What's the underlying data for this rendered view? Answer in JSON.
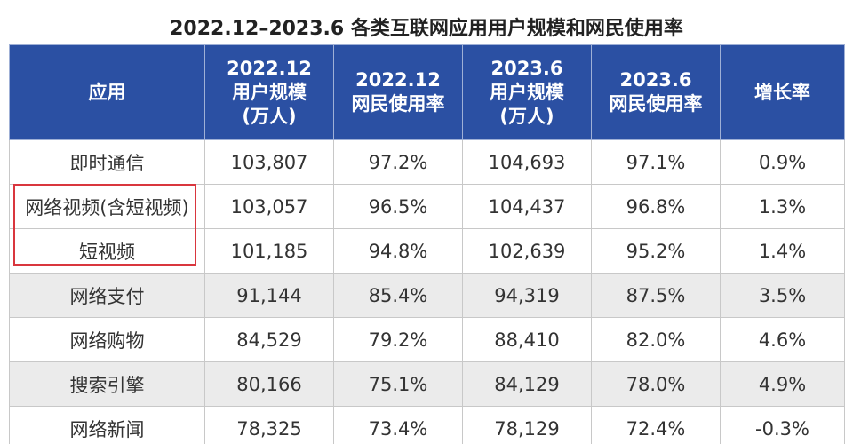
{
  "title": "2022.12–2023.6 各类互联网应用用户规模和网民使用率",
  "table": {
    "header": [
      [
        "应用"
      ],
      [
        "2022.12",
        "用户规模",
        "(万人)"
      ],
      [
        "2022.12",
        "网民使用率"
      ],
      [
        "2023.6",
        "用户规模",
        "(万人)"
      ],
      [
        "2023.6",
        "网民使用率"
      ],
      [
        "增长率"
      ]
    ],
    "rows": [
      [
        "即时通信",
        "103,807",
        "97.2%",
        "104,693",
        "97.1%",
        "0.9%"
      ],
      [
        "网络视频(含短视频)",
        "103,057",
        "96.5%",
        "104,437",
        "96.8%",
        "1.3%"
      ],
      [
        "短视频",
        "101,185",
        "94.8%",
        "102,639",
        "95.2%",
        "1.4%"
      ],
      [
        "网络支付",
        "91,144",
        "85.4%",
        "94,319",
        "87.5%",
        "3.5%"
      ],
      [
        "网络购物",
        "84,529",
        "79.2%",
        "88,410",
        "82.0%",
        "4.6%"
      ],
      [
        "搜索引擎",
        "80,166",
        "75.1%",
        "84,129",
        "78.0%",
        "4.9%"
      ],
      [
        "网络新闻",
        "78,325",
        "73.4%",
        "78,129",
        "72.4%",
        "-0.3%"
      ]
    ]
  }
}
